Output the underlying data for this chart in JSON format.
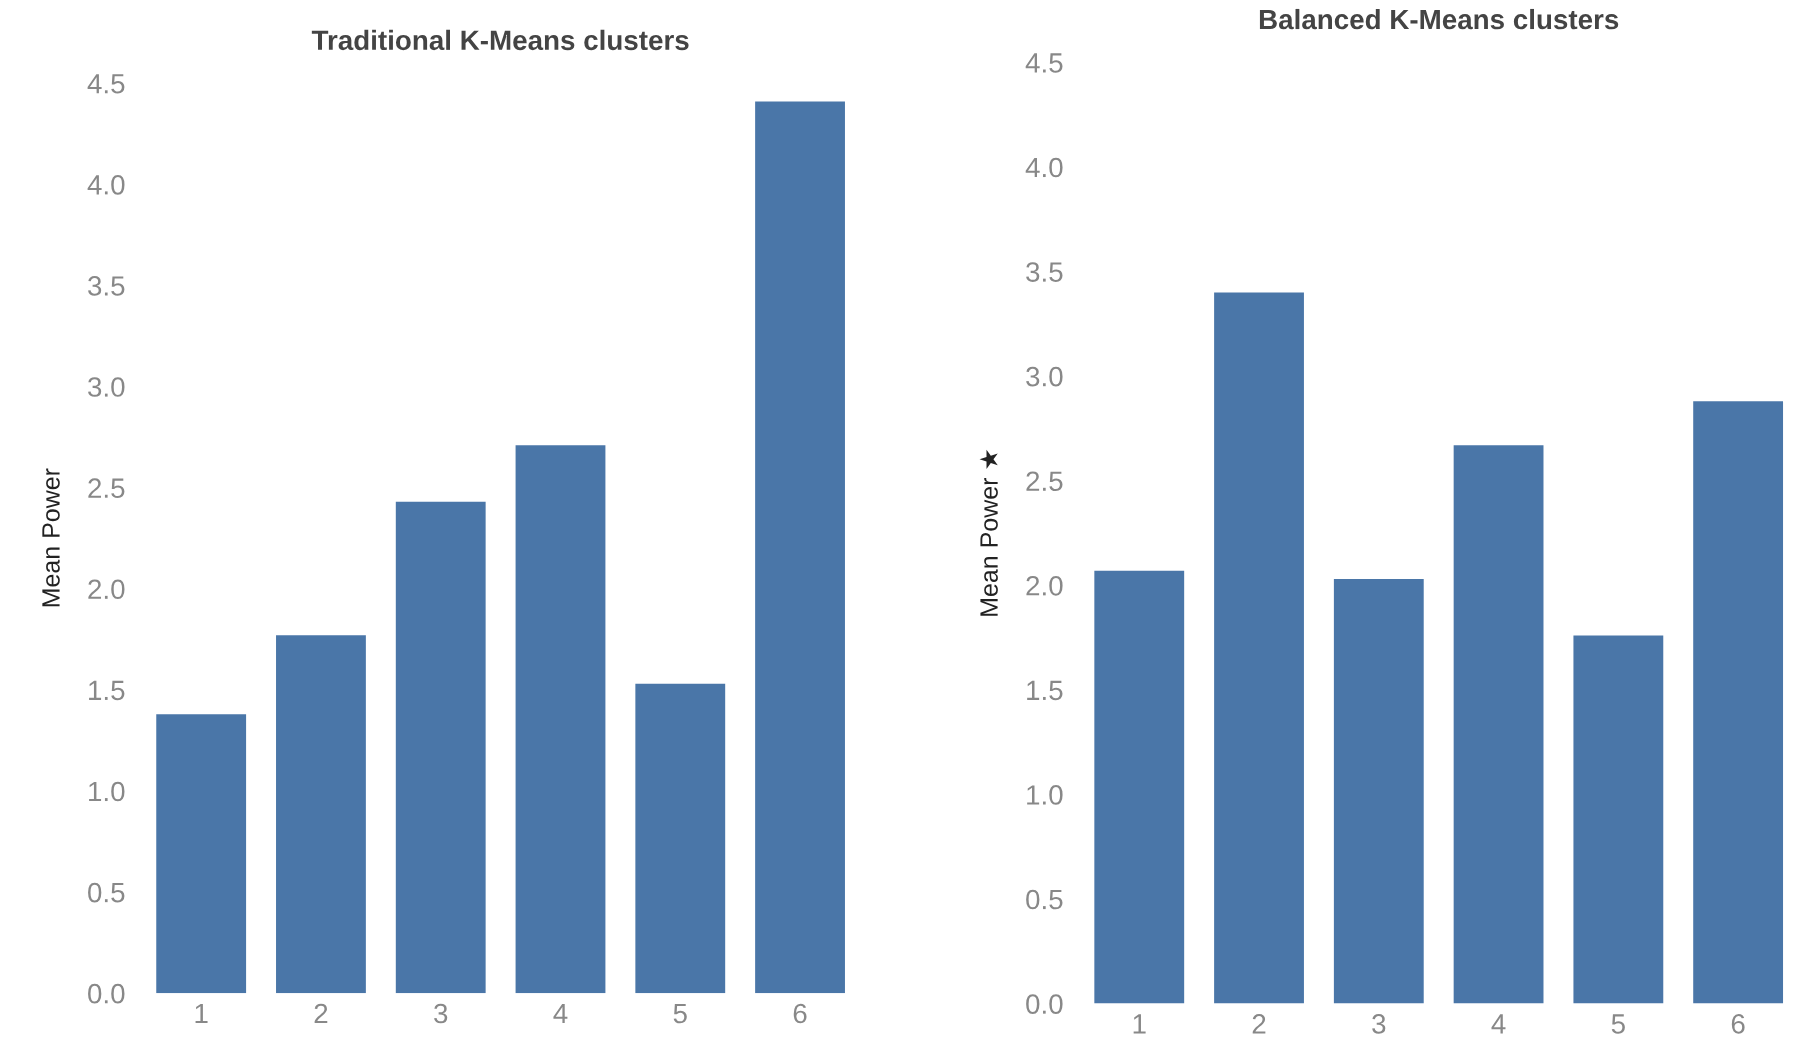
{
  "chart_data": [
    {
      "type": "bar",
      "title": "Traditional K-Means clusters",
      "ylabel": "Mean Power",
      "categories": [
        "1",
        "2",
        "3",
        "4",
        "5",
        "6"
      ],
      "values": [
        1.38,
        1.77,
        2.43,
        2.71,
        1.53,
        4.41
      ],
      "color": "#4a76a8",
      "ylim": [
        0,
        4.5
      ],
      "yticks": [
        {
          "value": 0,
          "label": "0.0"
        },
        0.5,
        {
          "value": 1,
          "label": "1.0"
        },
        1.5,
        {
          "value": 2,
          "label": "2.0"
        },
        2.5,
        {
          "value": 3,
          "label": "3.0"
        },
        3.5,
        {
          "value": 4,
          "label": "4.0"
        },
        4.5
      ]
    },
    {
      "type": "bar",
      "title": "Balanced K-Means clusters",
      "ylabel": "Mean Power ★",
      "categories": [
        "1",
        "2",
        "3",
        "4",
        "5",
        "6"
      ],
      "values": [
        2.07,
        3.4,
        2.03,
        2.67,
        1.76,
        2.88
      ],
      "color": "#4a76a8",
      "ylim": [
        0,
        4.5
      ],
      "yticks": [
        {
          "value": 0,
          "label": "0.0"
        },
        0.5,
        {
          "value": 1,
          "label": "1.0"
        },
        1.5,
        {
          "value": 2,
          "label": "2.0"
        },
        2.5,
        {
          "value": 3,
          "label": "3.0"
        },
        3.5,
        {
          "value": 4,
          "label": "4.0"
        },
        4.5
      ]
    }
  ]
}
